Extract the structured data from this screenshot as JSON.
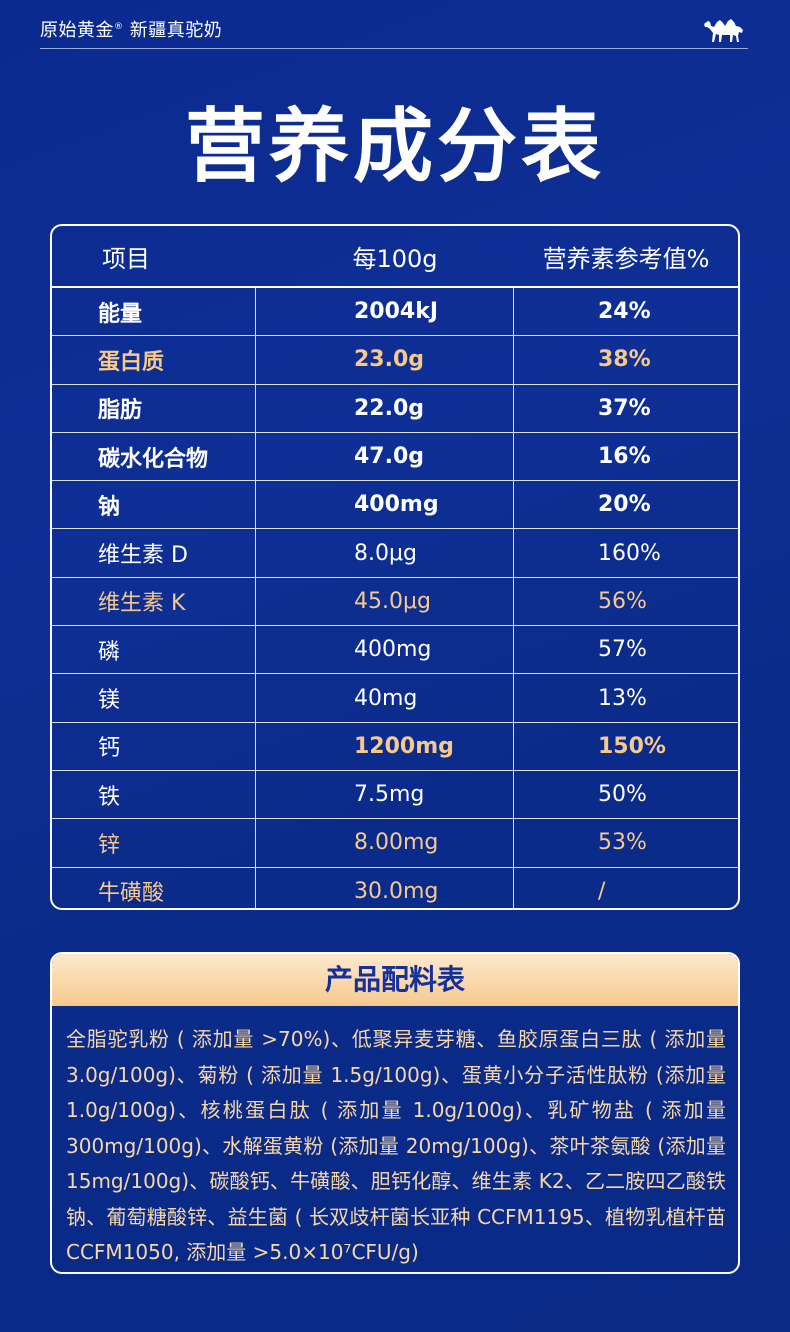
{
  "header": {
    "brand": "原始黄金",
    "reg_mark": "®",
    "subtitle": "新疆真驼奶"
  },
  "title": "营养成分表",
  "table": {
    "headers": [
      "项目",
      "每100g",
      "营养素参考值%"
    ],
    "rows": [
      {
        "name": "能量",
        "amount": "2004kJ",
        "nrv": "24%"
      },
      {
        "name": "蛋白质",
        "amount": "23.0g",
        "nrv": "38%"
      },
      {
        "name": "脂肪",
        "amount": "22.0g",
        "nrv": "37%"
      },
      {
        "name": "碳水化合物",
        "amount": "47.0g",
        "nrv": "16%"
      },
      {
        "name": "钠",
        "amount": "400mg",
        "nrv": "20%"
      },
      {
        "name": "维生素 D",
        "amount": "8.0μg",
        "nrv": "160%"
      },
      {
        "name": "维生素 K",
        "amount": "45.0μg",
        "nrv": "56%"
      },
      {
        "name": "磷",
        "amount": "400mg",
        "nrv": "57%"
      },
      {
        "name": "镁",
        "amount": "40mg",
        "nrv": "13%"
      },
      {
        "name": "钙",
        "amount": "1200mg",
        "nrv": "150%"
      },
      {
        "name": "铁",
        "amount": "7.5mg",
        "nrv": "50%"
      },
      {
        "name": "锌",
        "amount": "8.00mg",
        "nrv": "53%"
      },
      {
        "name": "牛磺酸",
        "amount": "30.0mg",
        "nrv": "/"
      }
    ]
  },
  "ingredients": {
    "title": "产品配料表",
    "text": "全脂驼乳粉 ( 添加量 >70%)、低聚异麦芽糖、鱼胶原蛋白三肽 ( 添加量 3.0g/100g)、菊粉 ( 添加量 1.5g/100g)、蛋黄小分子活性肽粉 (添加量 1.0g/100g)、核桃蛋白肽 ( 添加量 1.0g/100g)、乳矿物盐 ( 添加量300mg/100g)、水解蛋黄粉 (添加量 20mg/100g)、茶叶茶氨酸 (添加量 15mg/100g)、碳酸钙、牛磺酸、胆钙化醇、维生素 K2、乙二胺四乙酸铁钠、葡萄糖酸锌、益生菌 ( 长双歧杆菌长亚种 CCFM1195、植物乳植杆苗 CCFM1050, 添加量 >5.0×10⁷CFU/g)"
  },
  "colors": {
    "background": "#0e2f95",
    "gold": "#f7c98a",
    "title_bar": "#f7c98e",
    "title_text": "#14309a"
  }
}
